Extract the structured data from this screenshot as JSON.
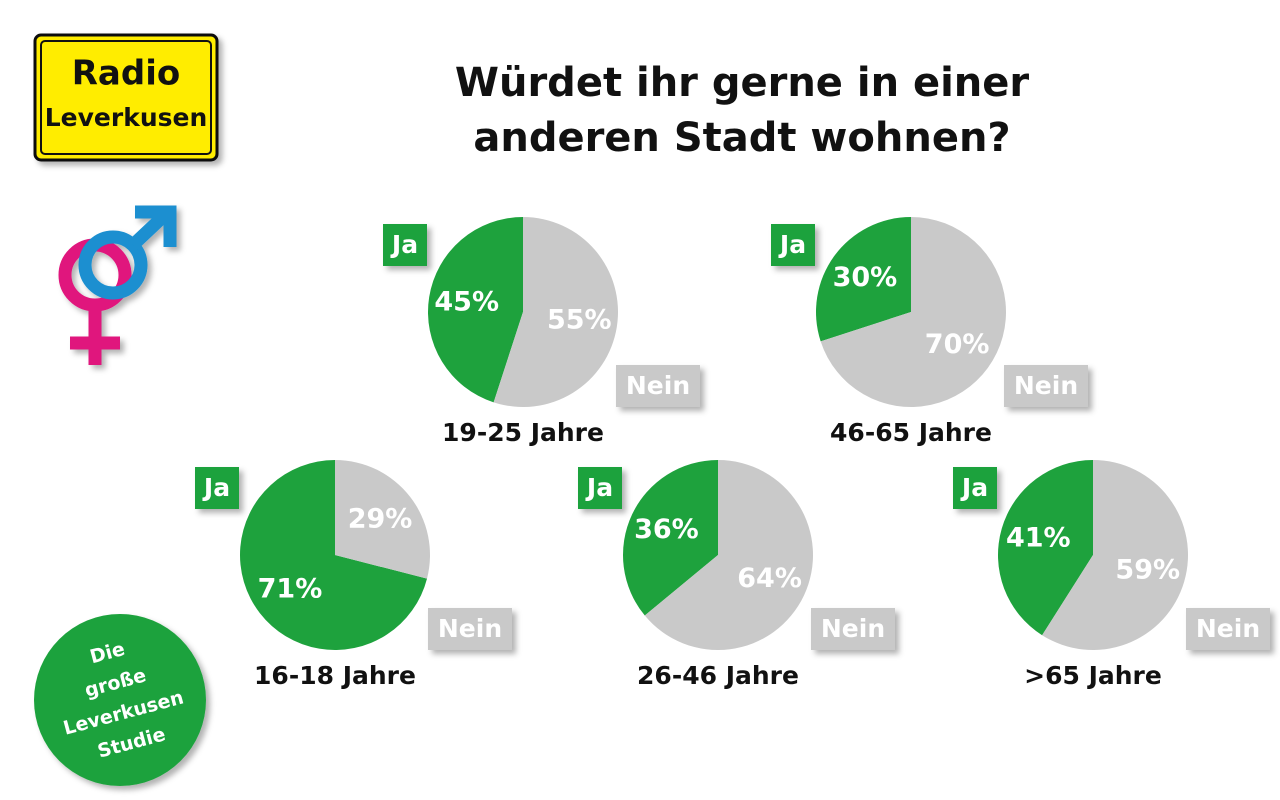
{
  "logo": {
    "lines": [
      "Radio",
      "Leverkusen"
    ]
  },
  "title": [
    "Würdet ihr gerne in einer",
    "anderen Stadt wohnen?"
  ],
  "badge": [
    "Die",
    "große",
    "Leverkusen",
    "Studie"
  ],
  "chart_data": [
    {
      "type": "pie",
      "label": "19-25 Jahre",
      "categories": [
        "Ja",
        "Nein"
      ],
      "values": [
        45,
        55
      ],
      "value_labels": [
        "45%",
        "55%"
      ],
      "colors": [
        "#1ea23d",
        "#c9c9c9"
      ]
    },
    {
      "type": "pie",
      "label": "46-65 Jahre",
      "categories": [
        "Ja",
        "Nein"
      ],
      "values": [
        30,
        70
      ],
      "value_labels": [
        "30%",
        "70%"
      ],
      "colors": [
        "#1ea23d",
        "#c9c9c9"
      ]
    },
    {
      "type": "pie",
      "label": "16-18 Jahre",
      "categories": [
        "Ja",
        "Nein"
      ],
      "values": [
        71,
        29
      ],
      "value_labels": [
        "71%",
        "29%"
      ],
      "colors": [
        "#1ea23d",
        "#c9c9c9"
      ]
    },
    {
      "type": "pie",
      "label": "26-46 Jahre",
      "categories": [
        "Ja",
        "Nein"
      ],
      "values": [
        36,
        64
      ],
      "value_labels": [
        "36%",
        "64%"
      ],
      "colors": [
        "#1ea23d",
        "#c9c9c9"
      ]
    },
    {
      "type": "pie",
      "label": ">65 Jahre",
      "categories": [
        "Ja",
        "Nein"
      ],
      "values": [
        41,
        59
      ],
      "value_labels": [
        "41%",
        "59%"
      ],
      "colors": [
        "#1ea23d",
        "#c9c9c9"
      ]
    }
  ]
}
